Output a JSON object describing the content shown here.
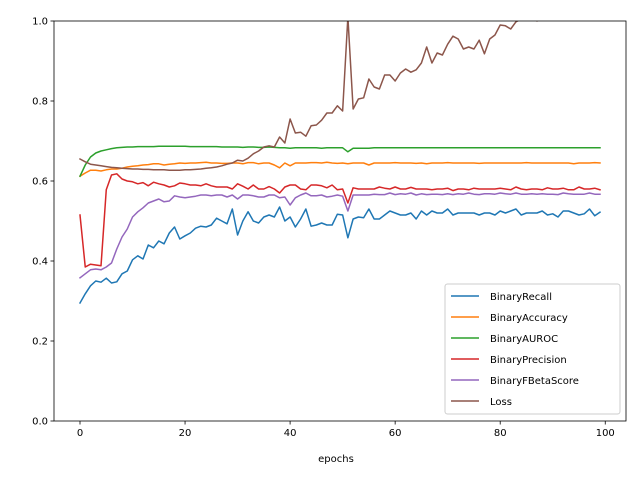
{
  "chart_data": {
    "type": "line",
    "title": "",
    "xlabel": "epochs",
    "ylabel": "",
    "xlim": [
      -4.95,
      103.95
    ],
    "ylim": [
      0.0,
      1.0
    ],
    "xticks": [
      0,
      20,
      40,
      60,
      80,
      100
    ],
    "yticks": [
      0.0,
      0.2,
      0.4,
      0.6,
      0.8,
      1.0
    ],
    "xtick_labels": [
      "0",
      "20",
      "40",
      "60",
      "80",
      "100"
    ],
    "ytick_labels": [
      "0.0",
      "0.2",
      "0.4",
      "0.6",
      "0.8",
      "1.0"
    ],
    "grid": false,
    "legend_position": "lower-right",
    "x": [
      0,
      1,
      2,
      3,
      4,
      5,
      6,
      7,
      8,
      9,
      10,
      11,
      12,
      13,
      14,
      15,
      16,
      17,
      18,
      19,
      20,
      21,
      22,
      23,
      24,
      25,
      26,
      27,
      28,
      29,
      30,
      31,
      32,
      33,
      34,
      35,
      36,
      37,
      38,
      39,
      40,
      41,
      42,
      43,
      44,
      45,
      46,
      47,
      48,
      49,
      50,
      51,
      52,
      53,
      54,
      55,
      56,
      57,
      58,
      59,
      60,
      61,
      62,
      63,
      64,
      65,
      66,
      67,
      68,
      69,
      70,
      71,
      72,
      73,
      74,
      75,
      76,
      77,
      78,
      79,
      80,
      81,
      82,
      83,
      84,
      85,
      86,
      87,
      88,
      89,
      90,
      91,
      92,
      93,
      94,
      95,
      96,
      97,
      98,
      99
    ],
    "series": [
      {
        "name": "BinaryRecall",
        "color": "#1f77b4",
        "values": [
          0.295,
          0.318,
          0.338,
          0.35,
          0.347,
          0.357,
          0.345,
          0.348,
          0.368,
          0.375,
          0.403,
          0.413,
          0.405,
          0.44,
          0.433,
          0.45,
          0.443,
          0.47,
          0.485,
          0.455,
          0.463,
          0.47,
          0.482,
          0.487,
          0.485,
          0.49,
          0.507,
          0.5,
          0.493,
          0.53,
          0.465,
          0.5,
          0.523,
          0.5,
          0.495,
          0.51,
          0.515,
          0.51,
          0.535,
          0.5,
          0.51,
          0.485,
          0.505,
          0.53,
          0.487,
          0.49,
          0.495,
          0.49,
          0.49,
          0.517,
          0.515,
          0.458,
          0.505,
          0.51,
          0.508,
          0.53,
          0.505,
          0.505,
          0.515,
          0.525,
          0.52,
          0.515,
          0.515,
          0.52,
          0.505,
          0.525,
          0.515,
          0.525,
          0.52,
          0.52,
          0.53,
          0.515,
          0.52,
          0.52,
          0.52,
          0.52,
          0.515,
          0.52,
          0.52,
          0.515,
          0.525,
          0.52,
          0.525,
          0.53,
          0.515,
          0.52,
          0.52,
          0.52,
          0.525,
          0.515,
          0.518,
          0.51,
          0.525,
          0.525,
          0.52,
          0.515,
          0.518,
          0.53,
          0.513,
          0.522
        ]
      },
      {
        "name": "BinaryAccuracy",
        "color": "#ff7f0e",
        "values": [
          0.612,
          0.62,
          0.627,
          0.627,
          0.625,
          0.628,
          0.63,
          0.63,
          0.632,
          0.635,
          0.637,
          0.638,
          0.64,
          0.641,
          0.643,
          0.643,
          0.64,
          0.642,
          0.643,
          0.645,
          0.644,
          0.645,
          0.645,
          0.646,
          0.647,
          0.645,
          0.645,
          0.644,
          0.644,
          0.645,
          0.645,
          0.643,
          0.646,
          0.646,
          0.643,
          0.645,
          0.645,
          0.64,
          0.633,
          0.645,
          0.638,
          0.645,
          0.645,
          0.645,
          0.646,
          0.646,
          0.645,
          0.647,
          0.645,
          0.644,
          0.645,
          0.643,
          0.645,
          0.645,
          0.645,
          0.64,
          0.645,
          0.645,
          0.645,
          0.645,
          0.646,
          0.645,
          0.645,
          0.645,
          0.644,
          0.645,
          0.643,
          0.645,
          0.645,
          0.645,
          0.646,
          0.645,
          0.645,
          0.645,
          0.645,
          0.645,
          0.644,
          0.645,
          0.645,
          0.645,
          0.645,
          0.645,
          0.645,
          0.645,
          0.645,
          0.646,
          0.645,
          0.645,
          0.645,
          0.645,
          0.645,
          0.645,
          0.645,
          0.645,
          0.643,
          0.645,
          0.645,
          0.645,
          0.646,
          0.645
        ]
      },
      {
        "name": "BinaryAUROC",
        "color": "#2ca02c",
        "values": [
          0.612,
          0.64,
          0.66,
          0.67,
          0.675,
          0.678,
          0.681,
          0.683,
          0.684,
          0.685,
          0.685,
          0.686,
          0.686,
          0.686,
          0.686,
          0.687,
          0.687,
          0.687,
          0.687,
          0.687,
          0.687,
          0.686,
          0.686,
          0.686,
          0.686,
          0.686,
          0.686,
          0.685,
          0.685,
          0.685,
          0.685,
          0.684,
          0.685,
          0.685,
          0.684,
          0.684,
          0.685,
          0.684,
          0.683,
          0.683,
          0.682,
          0.683,
          0.683,
          0.683,
          0.683,
          0.683,
          0.682,
          0.683,
          0.683,
          0.683,
          0.683,
          0.673,
          0.682,
          0.682,
          0.682,
          0.682,
          0.683,
          0.683,
          0.683,
          0.683,
          0.683,
          0.683,
          0.683,
          0.683,
          0.683,
          0.683,
          0.683,
          0.683,
          0.683,
          0.683,
          0.683,
          0.683,
          0.683,
          0.683,
          0.683,
          0.683,
          0.683,
          0.683,
          0.683,
          0.683,
          0.683,
          0.683,
          0.683,
          0.683,
          0.683,
          0.683,
          0.683,
          0.683,
          0.683,
          0.683,
          0.683,
          0.683,
          0.683,
          0.683,
          0.683,
          0.683,
          0.683,
          0.683,
          0.683,
          0.683
        ]
      },
      {
        "name": "BinaryPrecision",
        "color": "#d62728",
        "values": [
          0.515,
          0.385,
          0.392,
          0.39,
          0.388,
          0.578,
          0.615,
          0.618,
          0.605,
          0.6,
          0.598,
          0.593,
          0.596,
          0.588,
          0.597,
          0.593,
          0.59,
          0.585,
          0.588,
          0.595,
          0.593,
          0.59,
          0.59,
          0.588,
          0.593,
          0.588,
          0.585,
          0.585,
          0.585,
          0.58,
          0.593,
          0.587,
          0.58,
          0.59,
          0.58,
          0.58,
          0.586,
          0.58,
          0.57,
          0.585,
          0.59,
          0.59,
          0.58,
          0.578,
          0.59,
          0.59,
          0.588,
          0.583,
          0.59,
          0.578,
          0.58,
          0.545,
          0.583,
          0.58,
          0.58,
          0.58,
          0.58,
          0.585,
          0.582,
          0.58,
          0.585,
          0.58,
          0.58,
          0.584,
          0.58,
          0.58,
          0.58,
          0.578,
          0.58,
          0.58,
          0.582,
          0.576,
          0.58,
          0.58,
          0.578,
          0.582,
          0.58,
          0.58,
          0.58,
          0.58,
          0.582,
          0.58,
          0.578,
          0.585,
          0.58,
          0.578,
          0.58,
          0.58,
          0.578,
          0.583,
          0.58,
          0.58,
          0.582,
          0.578,
          0.578,
          0.585,
          0.58,
          0.58,
          0.582,
          0.578
        ]
      },
      {
        "name": "BinaryFBetaScore",
        "color": "#9467bd",
        "values": [
          0.358,
          0.368,
          0.378,
          0.38,
          0.378,
          0.385,
          0.395,
          0.43,
          0.46,
          0.48,
          0.51,
          0.523,
          0.533,
          0.545,
          0.55,
          0.555,
          0.548,
          0.55,
          0.563,
          0.56,
          0.558,
          0.56,
          0.562,
          0.565,
          0.565,
          0.563,
          0.565,
          0.565,
          0.56,
          0.565,
          0.555,
          0.565,
          0.565,
          0.563,
          0.56,
          0.56,
          0.565,
          0.565,
          0.558,
          0.56,
          0.54,
          0.558,
          0.565,
          0.57,
          0.563,
          0.563,
          0.565,
          0.56,
          0.562,
          0.565,
          0.562,
          0.525,
          0.565,
          0.565,
          0.565,
          0.565,
          0.567,
          0.566,
          0.566,
          0.57,
          0.566,
          0.568,
          0.567,
          0.57,
          0.565,
          0.568,
          0.566,
          0.567,
          0.567,
          0.566,
          0.568,
          0.566,
          0.568,
          0.567,
          0.57,
          0.567,
          0.566,
          0.568,
          0.568,
          0.567,
          0.57,
          0.568,
          0.567,
          0.57,
          0.567,
          0.567,
          0.568,
          0.567,
          0.568,
          0.567,
          0.567,
          0.566,
          0.57,
          0.568,
          0.567,
          0.567,
          0.567,
          0.57,
          0.567,
          0.567
        ]
      },
      {
        "name": "Loss",
        "color": "#8c564b",
        "values": [
          0.655,
          0.648,
          0.642,
          0.64,
          0.638,
          0.636,
          0.634,
          0.633,
          0.632,
          0.631,
          0.63,
          0.63,
          0.629,
          0.629,
          0.628,
          0.628,
          0.628,
          0.627,
          0.627,
          0.627,
          0.628,
          0.628,
          0.629,
          0.63,
          0.632,
          0.633,
          0.635,
          0.638,
          0.642,
          0.645,
          0.652,
          0.65,
          0.657,
          0.668,
          0.675,
          0.685,
          0.688,
          0.685,
          0.71,
          0.695,
          0.755,
          0.72,
          0.722,
          0.712,
          0.738,
          0.74,
          0.752,
          0.77,
          0.77,
          0.788,
          0.775,
          1.01,
          0.78,
          0.805,
          0.808,
          0.855,
          0.835,
          0.83,
          0.865,
          0.865,
          0.85,
          0.87,
          0.88,
          0.872,
          0.878,
          0.895,
          0.935,
          0.895,
          0.92,
          0.915,
          0.942,
          0.962,
          0.955,
          0.93,
          0.935,
          0.93,
          0.952,
          0.918,
          0.955,
          0.965,
          0.99,
          0.988,
          0.98,
          0.998,
          1.005,
          1.02,
          1.03,
          1.0,
          1.01,
          1.02,
          1.03,
          1.025,
          1.04,
          1.05,
          1.03,
          1.04,
          1.045,
          1.05,
          1.06,
          1.055
        ]
      }
    ]
  }
}
